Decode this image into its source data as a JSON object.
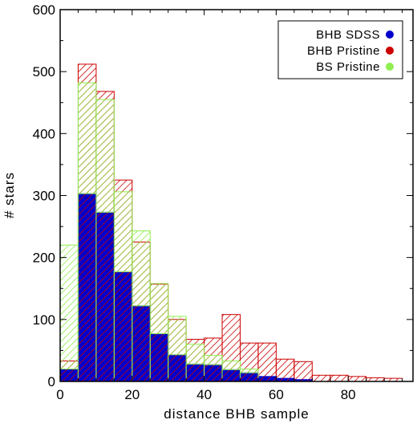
{
  "chart_data": {
    "type": "bar",
    "title": "",
    "xlabel": "distance BHB sample",
    "ylabel": "# stars",
    "xlim": [
      0,
      98
    ],
    "ylim": [
      0,
      600
    ],
    "xticks": [
      0,
      20,
      40,
      60,
      80
    ],
    "yticks": [
      0,
      100,
      200,
      300,
      400,
      500,
      600
    ],
    "bin_width": 5,
    "bin_starts": [
      0,
      5,
      10,
      15,
      20,
      25,
      30,
      35,
      40,
      45,
      50,
      55,
      60,
      65,
      70,
      75,
      80,
      85,
      90,
      95
    ],
    "grid": false,
    "legend_position": "top-right",
    "series": [
      {
        "name": "BHB Pristine",
        "color": "#cc0000",
        "style": "hatch",
        "values": [
          33,
          512,
          468,
          325,
          225,
          157,
          100,
          68,
          70,
          108,
          62,
          62,
          36,
          32,
          10,
          10,
          8,
          6,
          5,
          0
        ]
      },
      {
        "name": "BS Pristine",
        "color": "#90ee50",
        "style": "hatch",
        "values": [
          220,
          482,
          455,
          306,
          243,
          158,
          105,
          60,
          42,
          33,
          20,
          0,
          0,
          0,
          0,
          0,
          0,
          0,
          0,
          0
        ]
      },
      {
        "name": "BHB SDSS",
        "color": "#0000cc",
        "style": "fill",
        "values": [
          20,
          303,
          273,
          177,
          122,
          77,
          43,
          28,
          27,
          19,
          14,
          8,
          5,
          3,
          0,
          0,
          0,
          0,
          0,
          0
        ]
      }
    ]
  }
}
